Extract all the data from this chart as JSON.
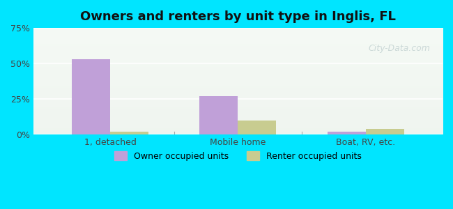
{
  "title": "Owners and renters by unit type in Inglis, FL",
  "categories": [
    "1, detached",
    "Mobile home",
    "Boat, RV, etc."
  ],
  "owner_values": [
    53.0,
    27.0,
    2.0
  ],
  "renter_values": [
    2.0,
    10.0,
    4.0
  ],
  "owner_color": "#c0a0d8",
  "renter_color": "#c8cc90",
  "ylim": [
    0,
    75
  ],
  "yticks": [
    0,
    25,
    50,
    75
  ],
  "yticklabels": [
    "0%",
    "25%",
    "50%",
    "75%"
  ],
  "bar_width": 0.3,
  "bg_color_top": "#e8f8f0",
  "bg_color_bottom": "#d8f4ec",
  "outer_bg": "#00e5ff",
  "legend_owner": "Owner occupied units",
  "legend_renter": "Renter occupied units",
  "watermark": "City-Data.com"
}
